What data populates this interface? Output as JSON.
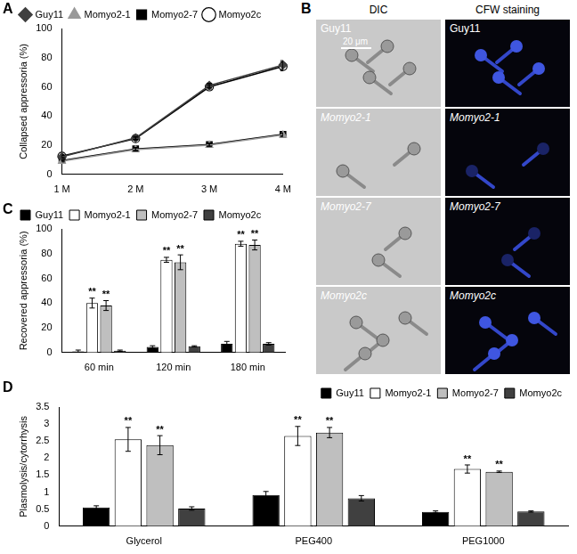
{
  "chart_data": [
    {
      "panel": "A",
      "type": "line",
      "categories": [
        "1 M",
        "2 M",
        "3 M",
        "4 M"
      ],
      "y_label": "Collapsed appressoria (%)",
      "ylim": [
        0,
        100
      ],
      "yticks": [
        0,
        20,
        40,
        60,
        80,
        100
      ],
      "grid": false,
      "legend": "upper left",
      "series": [
        {
          "name": "Guy11",
          "color": "#404040",
          "marker": "diamond",
          "values": [
            12,
            25,
            61,
            75
          ],
          "errors": [
            1,
            1,
            1.5,
            3
          ]
        },
        {
          "name": "Momyo2-1",
          "color": "#999999",
          "marker": "triangle",
          "values": [
            9,
            17,
            20,
            27
          ],
          "errors": [
            0.5,
            1,
            1,
            1
          ]
        },
        {
          "name": "Momyo2-7",
          "color": "#000000",
          "marker": "square",
          "values": [
            9.5,
            17.5,
            20.5,
            27.5
          ],
          "errors": [
            0.5,
            1,
            1,
            1
          ]
        },
        {
          "name": "Momyo2c",
          "color": "#000000",
          "marker": "open circle",
          "values": [
            12.5,
            24.5,
            60,
            74
          ],
          "errors": [
            1,
            1,
            1.5,
            3
          ]
        }
      ]
    },
    {
      "panel": "C",
      "type": "bar",
      "categories": [
        "60 min",
        "120 min",
        "180 min"
      ],
      "y_label": "Recovered appressoria (%)",
      "ylim": [
        0,
        100
      ],
      "yticks": [
        0,
        20,
        40,
        60,
        80,
        100
      ],
      "grid": false,
      "legend": "upper left",
      "series": [
        {
          "name": "Guy11",
          "color": "#000000",
          "values": [
            1,
            4.5,
            7
          ],
          "errors": [
            1,
            1,
            2
          ]
        },
        {
          "name": "Momyo2-1",
          "color": "#ffffff",
          "values": [
            40,
            75,
            88
          ],
          "errors": [
            4,
            2,
            2
          ],
          "significance": [
            "**",
            "**",
            "**"
          ]
        },
        {
          "name": "Momyo2-7",
          "color": "#bfbfbf",
          "values": [
            38,
            73,
            87
          ],
          "errors": [
            4,
            6,
            4
          ],
          "significance": [
            "**",
            "**",
            "**"
          ]
        },
        {
          "name": "Momyo2c",
          "color": "#404040",
          "values": [
            1.5,
            5,
            7
          ],
          "errors": [
            0.5,
            0.5,
            1
          ]
        }
      ]
    },
    {
      "panel": "D",
      "type": "bar",
      "categories": [
        "Glycerol",
        "PEG400",
        "PEG1000"
      ],
      "y_label": "Plasmolysis/cytorrhysis",
      "ylim": [
        0,
        3.5
      ],
      "yticks": [
        0,
        0.5,
        1,
        1.5,
        2,
        2.5,
        3,
        3.5
      ],
      "grid": false,
      "legend": "upper right",
      "series": [
        {
          "name": "Guy11",
          "color": "#000000",
          "values": [
            0.55,
            0.92,
            0.42
          ],
          "errors": [
            0.05,
            0.1,
            0.03
          ]
        },
        {
          "name": "Momyo2-1",
          "color": "#ffffff",
          "values": [
            2.55,
            2.65,
            1.68
          ],
          "errors": [
            0.35,
            0.28,
            0.12
          ],
          "significance": [
            "**",
            "**",
            "**"
          ]
        },
        {
          "name": "Momyo2-7",
          "color": "#bfbfbf",
          "values": [
            2.38,
            2.75,
            1.6
          ],
          "errors": [
            0.28,
            0.15,
            0.02
          ],
          "significance": [
            "**",
            "**",
            "**"
          ]
        },
        {
          "name": "Momyo2c",
          "color": "#404040",
          "values": [
            0.52,
            0.82,
            0.43
          ],
          "errors": [
            0.05,
            0.08,
            0.02
          ]
        }
      ]
    }
  ],
  "image_panel": {
    "panel": "B",
    "columns": [
      "DIC",
      "CFW staining"
    ],
    "rows": [
      "Guy11",
      "Momyo2-1",
      "Momyo2-7",
      "Momyo2c"
    ],
    "scale_bar": "20 μm"
  }
}
